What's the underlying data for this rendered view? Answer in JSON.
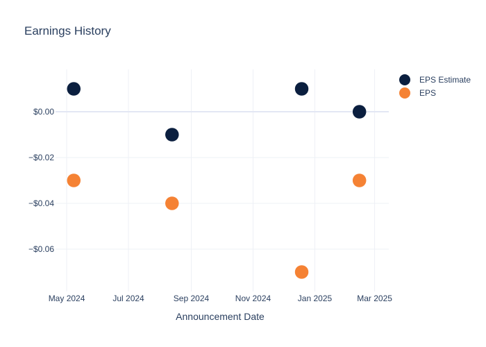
{
  "chart_data": {
    "type": "scatter",
    "title": "Earnings History",
    "xlabel": "Announcement Date",
    "ylabel": "",
    "x_axis": {
      "type": "date",
      "range": [
        "2024-04-20",
        "2025-03-15"
      ],
      "ticks": [
        {
          "date": "2024-05-01",
          "label": "May 2024"
        },
        {
          "date": "2024-07-01",
          "label": "Jul 2024"
        },
        {
          "date": "2024-09-01",
          "label": "Sep 2024"
        },
        {
          "date": "2024-11-01",
          "label": "Nov 2024"
        },
        {
          "date": "2025-01-01",
          "label": "Jan 2025"
        },
        {
          "date": "2025-03-01",
          "label": "Mar 2025"
        }
      ]
    },
    "y_axis": {
      "range": [
        -0.0785,
        0.0185
      ],
      "ticks": [
        {
          "value": 0.0,
          "label": "$0.00"
        },
        {
          "value": -0.02,
          "label": "−$0.02"
        },
        {
          "value": -0.04,
          "label": "−$0.04"
        },
        {
          "value": -0.06,
          "label": "−$0.06"
        }
      ]
    },
    "grid": true,
    "legend_position": "top-right",
    "series": [
      {
        "name": "EPS Estimate",
        "color": "#0b1f3f",
        "points": [
          {
            "x": "2024-05-08",
            "y": 0.01
          },
          {
            "x": "2024-08-13",
            "y": -0.01
          },
          {
            "x": "2024-12-19",
            "y": 0.01
          },
          {
            "x": "2025-02-14",
            "y": 0.0
          }
        ]
      },
      {
        "name": "EPS",
        "color": "#f58234",
        "points": [
          {
            "x": "2024-05-08",
            "y": -0.03
          },
          {
            "x": "2024-08-13",
            "y": -0.04
          },
          {
            "x": "2024-12-19",
            "y": -0.07
          },
          {
            "x": "2025-02-14",
            "y": -0.03
          }
        ]
      }
    ]
  }
}
